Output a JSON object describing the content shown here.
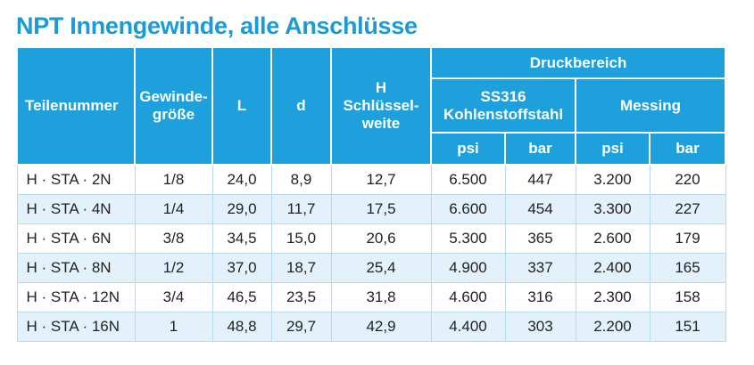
{
  "header": {
    "title": "NPT Innengewinde, alle Anschlüsse"
  },
  "table": {
    "columns": [
      [
        "Teilenummer"
      ],
      [
        "Gewinde-",
        "größe"
      ],
      [
        "L"
      ],
      [
        "d"
      ],
      [
        "H",
        "Schlüssel-",
        "weite"
      ]
    ],
    "group": "Druckbereich",
    "subgroups": [
      [
        "SS316",
        "Kohlenstoffstahl"
      ],
      [
        "Messing"
      ]
    ],
    "units": [
      "psi",
      "bar",
      "psi",
      "bar"
    ],
    "rows": [
      [
        "H · STA · 2N",
        "1/8",
        "24,0",
        "8,9",
        "12,7",
        "6.500",
        "447",
        "3.200",
        "220"
      ],
      [
        "H · STA · 4N",
        "1/4",
        "29,0",
        "11,7",
        "17,5",
        "6.600",
        "454",
        "3.300",
        "227"
      ],
      [
        "H · STA · 6N",
        "3/8",
        "34,5",
        "15,0",
        "20,6",
        "5.300",
        "365",
        "2.600",
        "179"
      ],
      [
        "H · STA · 8N",
        "1/2",
        "37,0",
        "18,7",
        "25,4",
        "4.900",
        "337",
        "2.400",
        "165"
      ],
      [
        "H · STA · 12N",
        "3/4",
        "46,5",
        "23,5",
        "31,8",
        "4.600",
        "316",
        "2.300",
        "158"
      ],
      [
        "H · STA · 16N",
        "1",
        "48,8",
        "29,7",
        "42,9",
        "4.400",
        "303",
        "2.200",
        "151"
      ]
    ]
  }
}
